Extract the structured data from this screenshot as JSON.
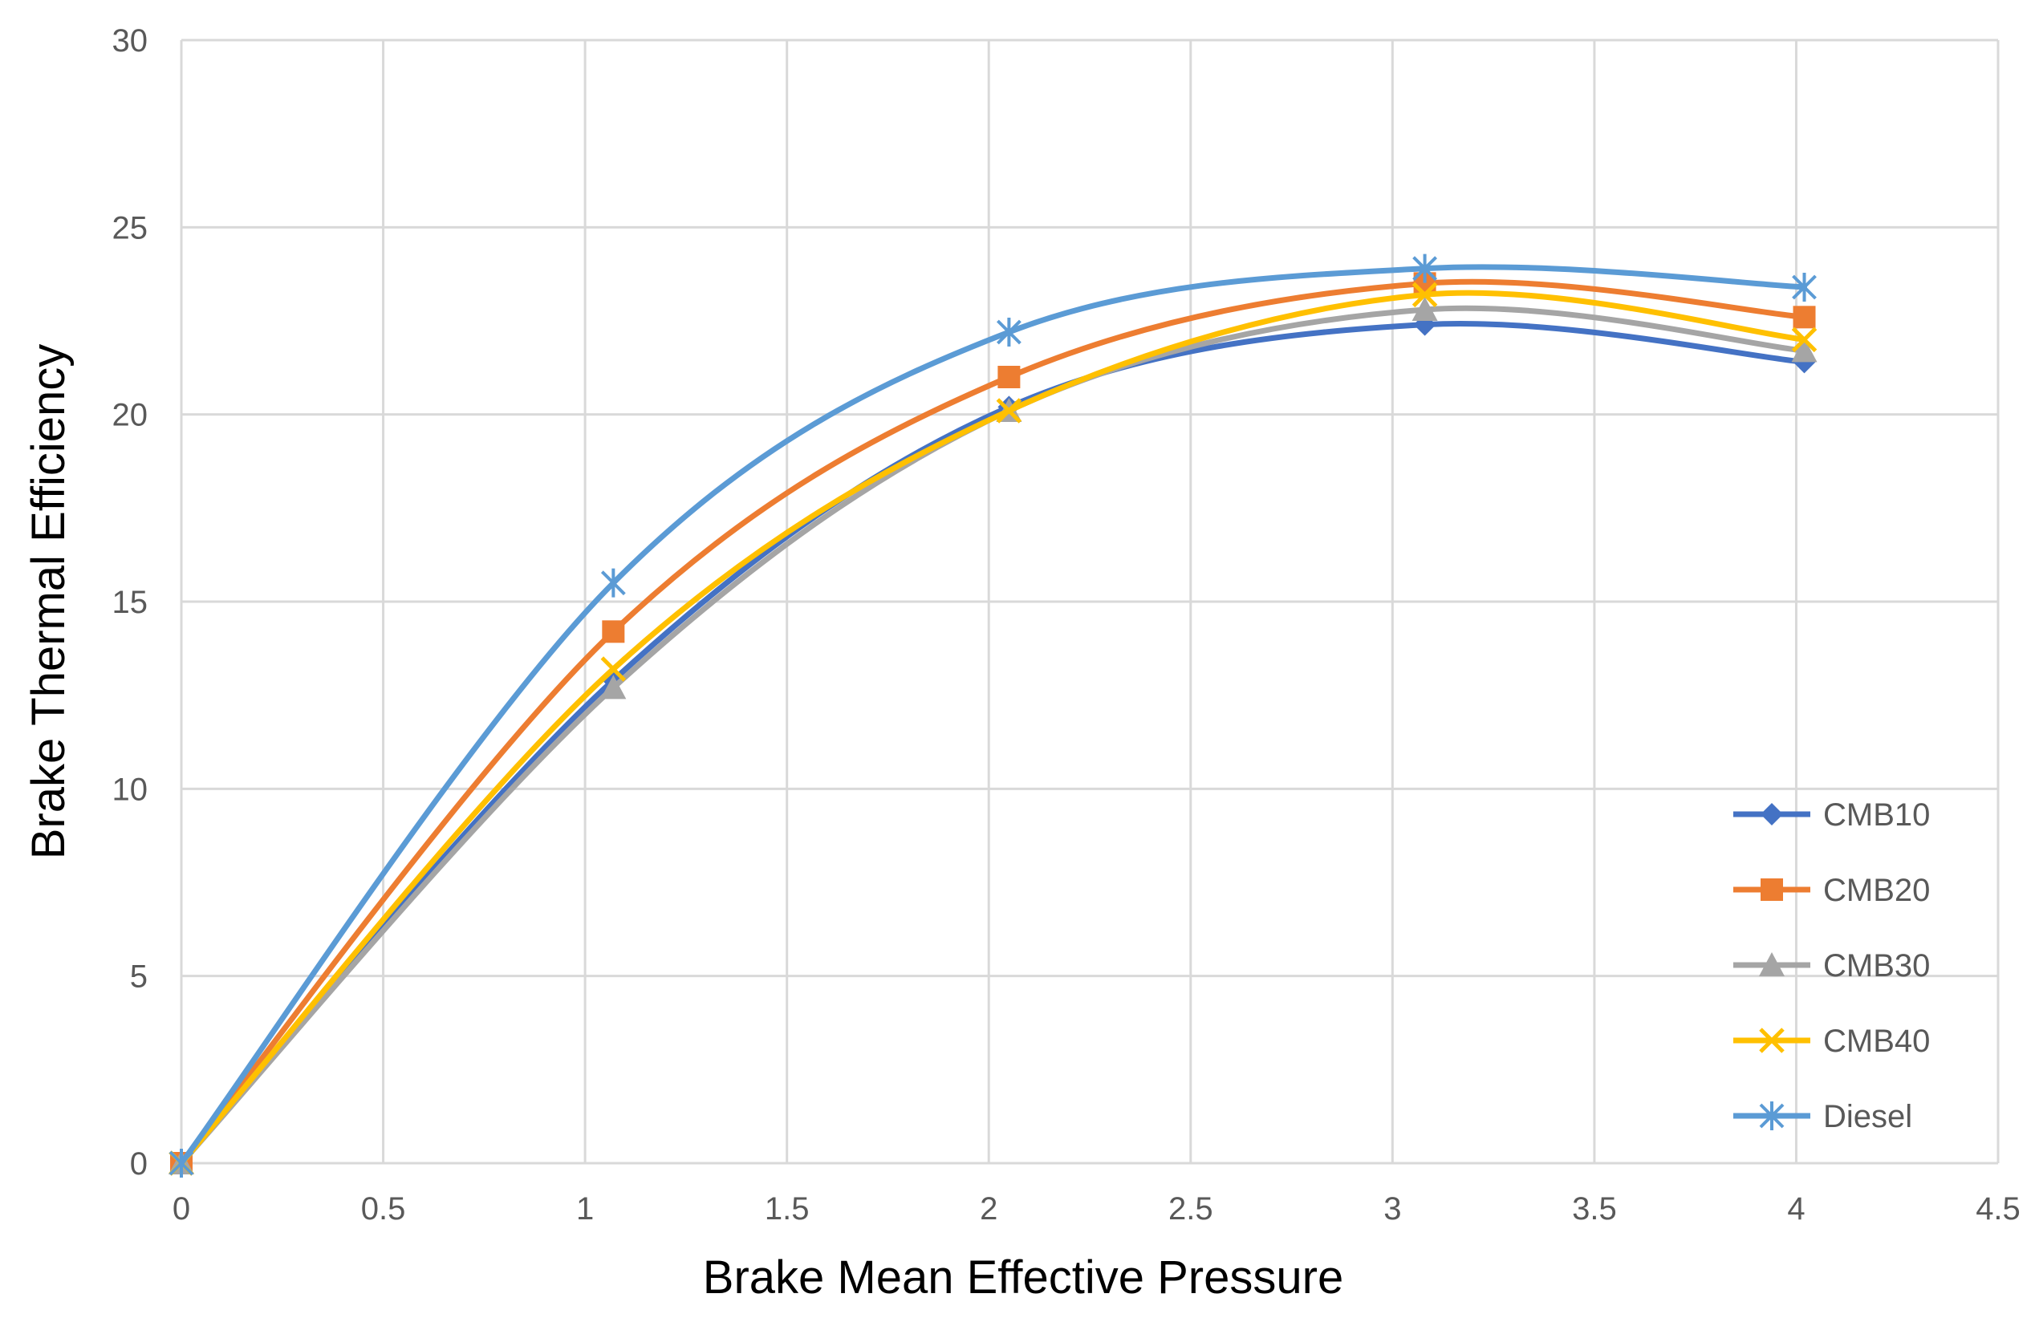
{
  "chart_data": {
    "type": "line",
    "smooth": true,
    "title": "",
    "xlabel": "Brake Mean Effective Pressure",
    "ylabel": "Brake Thermal Efficiency",
    "xlim": [
      0,
      4.5
    ],
    "ylim": [
      0,
      30
    ],
    "x_ticks": [
      "0",
      "0.5",
      "1",
      "1.5",
      "2",
      "2.5",
      "3",
      "3.5",
      "4",
      "4.5"
    ],
    "y_ticks": [
      "0",
      "5",
      "10",
      "15",
      "20",
      "25",
      "30"
    ],
    "grid": true,
    "legend_position": "bottom-right",
    "series": [
      {
        "name": "CMB10",
        "color": "#4472c4",
        "marker": "diamond",
        "x": [
          0,
          1.07,
          2.05,
          3.08,
          4.02
        ],
        "y": [
          0,
          12.9,
          20.2,
          22.4,
          21.4
        ]
      },
      {
        "name": "CMB20",
        "color": "#ed7d31",
        "marker": "square",
        "x": [
          0,
          1.07,
          2.05,
          3.08,
          4.02
        ],
        "y": [
          0,
          14.2,
          21.0,
          23.5,
          22.6
        ]
      },
      {
        "name": "CMB30",
        "color": "#a5a5a5",
        "marker": "triangle",
        "x": [
          0,
          1.07,
          2.05,
          3.08,
          4.02
        ],
        "y": [
          0,
          12.7,
          20.1,
          22.8,
          21.7
        ]
      },
      {
        "name": "CMB40",
        "color": "#ffc000",
        "marker": "x",
        "x": [
          0,
          1.07,
          2.05,
          3.08,
          4.02
        ],
        "y": [
          0,
          13.2,
          20.1,
          23.2,
          22.0
        ]
      },
      {
        "name": "Diesel",
        "color": "#5b9bd5",
        "marker": "asterisk",
        "x": [
          0,
          1.07,
          2.05,
          3.08,
          4.02
        ],
        "y": [
          0,
          15.5,
          22.2,
          23.9,
          23.4
        ]
      }
    ]
  }
}
